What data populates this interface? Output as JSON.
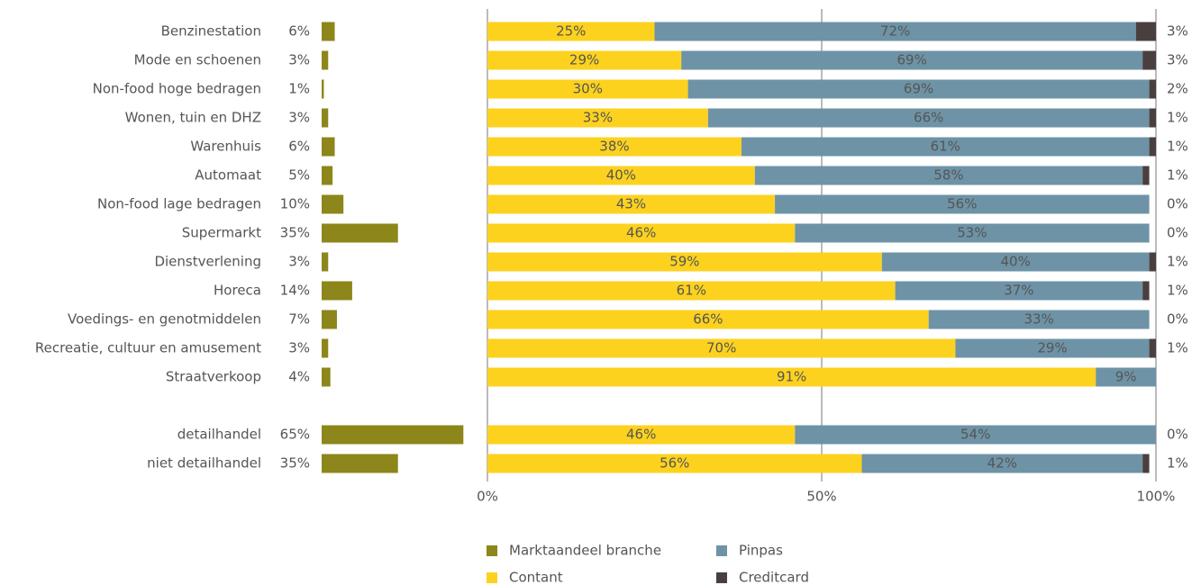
{
  "chart_data": [
    {
      "type": "bar",
      "categories": [
        "Benzinestation",
        "Mode en schoenen",
        "Non-food hoge bedragen",
        "Wonen, tuin en DHZ",
        "Warenhuis",
        "Automaat",
        "Non-food lage bedragen",
        "Supermarkt",
        "Dienstverlening",
        "Horeca",
        "Voedings- en genotmiddelen",
        "Recreatie, cultuur en amusement",
        "Straatverkoop",
        "detailhandel",
        "niet detailhandel"
      ],
      "series": [
        {
          "name": "Marktaandeel branche",
          "color": "#8c861b",
          "values": [
            6,
            3,
            1,
            3,
            6,
            5,
            10,
            35,
            3,
            14,
            7,
            3,
            4,
            65,
            35
          ],
          "value_labels": [
            "6%",
            "3%",
            "1%",
            "3%",
            "6%",
            "5%",
            "10%",
            "35%",
            "3%",
            "14%",
            "7%",
            "3%",
            "4%",
            "65%",
            "35%"
          ]
        }
      ]
    },
    {
      "type": "stacked-bar",
      "xlim": [
        0,
        100
      ],
      "xticks": [
        {
          "value": 0,
          "label": "0%"
        },
        {
          "value": 50,
          "label": "50%"
        },
        {
          "value": 100,
          "label": "100%"
        }
      ],
      "grid": true,
      "series": [
        {
          "name": "Contant",
          "color": "#fcd21f",
          "values": [
            25,
            29,
            30,
            33,
            38,
            40,
            43,
            46,
            59,
            61,
            66,
            70,
            91,
            46,
            56
          ],
          "value_labels": [
            "25%",
            "29%",
            "30%",
            "33%",
            "38%",
            "40%",
            "43%",
            "46%",
            "59%",
            "61%",
            "66%",
            "70%",
            "91%",
            "46%",
            "56%"
          ]
        },
        {
          "name": "Pinpas",
          "color": "#6e93a6",
          "values": [
            72,
            69,
            69,
            66,
            61,
            58,
            56,
            53,
            40,
            37,
            33,
            29,
            9,
            54,
            42
          ],
          "value_labels": [
            "72%",
            "69%",
            "69%",
            "66%",
            "61%",
            "58%",
            "56%",
            "53%",
            "40%",
            "37%",
            "33%",
            "29%",
            "9%",
            "54%",
            "42%"
          ]
        },
        {
          "name": "Creditcard",
          "color": "#4a3f3f",
          "values": [
            3,
            3,
            2,
            1,
            1,
            1,
            0,
            0,
            1,
            1,
            0,
            1,
            null,
            0,
            1
          ],
          "value_labels": [
            "3%",
            "3%",
            "2%",
            "1%",
            "1%",
            "1%",
            "0%",
            "0%",
            "1%",
            "1%",
            "0%",
            "1%",
            null,
            "0%",
            "1%"
          ]
        }
      ]
    }
  ]
}
